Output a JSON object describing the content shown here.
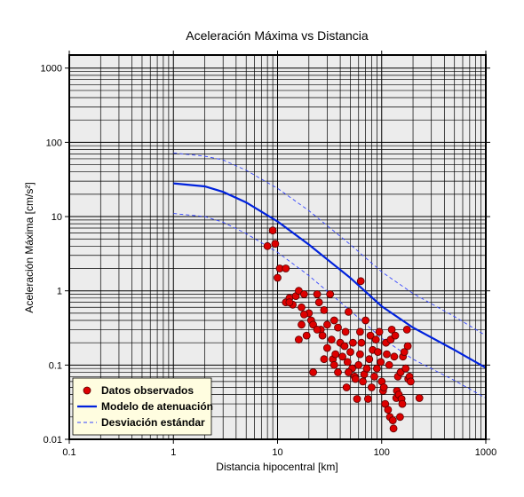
{
  "chart_data": {
    "type": "scatter",
    "title": "Aceleración Máxima vs Distancia",
    "xlabel": "Distancia hipocentral [km]",
    "ylabel": "Aceleración Máxima [cm/s²]",
    "xscale": "log",
    "yscale": "log",
    "xlim": [
      0.1,
      1000
    ],
    "ylim": [
      0.01,
      1500
    ],
    "grid": true,
    "legend_position": "bottom-left",
    "x_tick_labels": [
      "0.1",
      "1",
      "10",
      "100",
      "1000"
    ],
    "y_tick_labels": [
      "0.01",
      "0.1",
      "1",
      "10",
      "100",
      "1000"
    ],
    "series": [
      {
        "name": "Datos observados",
        "kind": "scatter",
        "color": "#dd0000",
        "points": [
          [
            8.0,
            4.0
          ],
          [
            9.0,
            6.5
          ],
          [
            9.5,
            4.3
          ],
          [
            10.0,
            1.5
          ],
          [
            10.5,
            2.0
          ],
          [
            12.0,
            2.0
          ],
          [
            12.0,
            0.7
          ],
          [
            13.0,
            0.8
          ],
          [
            14.0,
            0.65
          ],
          [
            15.0,
            0.85
          ],
          [
            16.0,
            1.0
          ],
          [
            17.0,
            0.6
          ],
          [
            18.0,
            0.9
          ],
          [
            16.0,
            0.22
          ],
          [
            17.0,
            0.35
          ],
          [
            19.0,
            0.25
          ],
          [
            20.0,
            0.5
          ],
          [
            21.0,
            0.4
          ],
          [
            22.0,
            0.35
          ],
          [
            24.0,
            0.9
          ],
          [
            25.0,
            0.7
          ],
          [
            26.0,
            0.3
          ],
          [
            27.0,
            0.25
          ],
          [
            28.0,
            0.55
          ],
          [
            30.0,
            0.35
          ],
          [
            32.0,
            0.9
          ],
          [
            33.0,
            0.22
          ],
          [
            34.0,
            0.12
          ],
          [
            35.0,
            0.1
          ],
          [
            36.0,
            0.14
          ],
          [
            38.0,
            0.08
          ],
          [
            40.0,
            0.2
          ],
          [
            42.0,
            0.13
          ],
          [
            44.0,
            0.18
          ],
          [
            46.0,
            0.05
          ],
          [
            47.0,
            0.11
          ],
          [
            48.0,
            0.52
          ],
          [
            50.0,
            0.15
          ],
          [
            52.0,
            0.09
          ],
          [
            53.0,
            0.2
          ],
          [
            55.0,
            0.07
          ],
          [
            56.0,
            0.065
          ],
          [
            58.0,
            0.035
          ],
          [
            60.0,
            0.1
          ],
          [
            62.0,
            0.14
          ],
          [
            63.0,
            1.35
          ],
          [
            64.0,
            0.2
          ],
          [
            66.0,
            0.06
          ],
          [
            68.0,
            0.075
          ],
          [
            70.0,
            0.4
          ],
          [
            72.0,
            0.09
          ],
          [
            74.0,
            0.035
          ],
          [
            76.0,
            0.12
          ],
          [
            78.0,
            0.25
          ],
          [
            80.0,
            0.05
          ],
          [
            82.0,
            0.16
          ],
          [
            85.0,
            0.07
          ],
          [
            88.0,
            0.22
          ],
          [
            90.0,
            0.09
          ],
          [
            92.0,
            0.15
          ],
          [
            95.0,
            0.28
          ],
          [
            98.0,
            0.11
          ],
          [
            100.0,
            0.06
          ],
          [
            103.0,
            0.045
          ],
          [
            105.0,
            0.05
          ],
          [
            108.0,
            0.03
          ],
          [
            110.0,
            0.2
          ],
          [
            112.0,
            0.14
          ],
          [
            115.0,
            0.025
          ],
          [
            118.0,
            0.1
          ],
          [
            120.0,
            0.02
          ],
          [
            122.0,
            0.22
          ],
          [
            125.0,
            0.3
          ],
          [
            128.0,
            0.018
          ],
          [
            130.0,
            0.014
          ],
          [
            132.0,
            0.13
          ],
          [
            135.0,
            0.25
          ],
          [
            138.0,
            0.036
          ],
          [
            140.0,
            0.045
          ],
          [
            143.0,
            0.07
          ],
          [
            146.0,
            0.04
          ],
          [
            150.0,
            0.02
          ],
          [
            152.0,
            0.08
          ],
          [
            155.0,
            0.035
          ],
          [
            158.0,
            0.03
          ],
          [
            160.0,
            0.13
          ],
          [
            165.0,
            0.15
          ],
          [
            170.0,
            0.09
          ],
          [
            175.0,
            0.3
          ],
          [
            178.0,
            0.18
          ],
          [
            180.0,
            0.065
          ],
          [
            185.0,
            0.07
          ],
          [
            190.0,
            0.06
          ],
          [
            230.0,
            0.036
          ],
          [
            48.0,
            0.08
          ],
          [
            38.0,
            0.32
          ],
          [
            30.0,
            0.17
          ],
          [
            28.0,
            0.12
          ],
          [
            62.0,
            0.28
          ],
          [
            22.0,
            0.08
          ],
          [
            13.0,
            0.7
          ],
          [
            18.0,
            0.48
          ],
          [
            24.0,
            0.3
          ],
          [
            35.0,
            0.4
          ],
          [
            45.0,
            0.28
          ]
        ]
      },
      {
        "name": "Modelo de atenuación",
        "kind": "line",
        "color": "#0022dd",
        "x": [
          1,
          2,
          3,
          5,
          10,
          20,
          50,
          100,
          200,
          500,
          1000
        ],
        "y": [
          28,
          25.5,
          21.5,
          15.5,
          8.6,
          4.2,
          1.49,
          0.62,
          0.32,
          0.16,
          0.092
        ]
      },
      {
        "name": "Desviación estándar",
        "kind": "line-dashed",
        "color": "#3344ff",
        "x": [
          1,
          2,
          3,
          5,
          10,
          20,
          50,
          100,
          200,
          500,
          1000
        ],
        "y": [
          72,
          65,
          58,
          42,
          24,
          12,
          4.2,
          1.8,
          0.92,
          0.45,
          0.25
        ]
      },
      {
        "name": "",
        "kind": "line-dashed",
        "color": "#3344ff",
        "legend": false,
        "x": [
          1,
          2,
          3,
          5,
          10,
          20,
          50,
          100,
          200,
          500,
          1000
        ],
        "y": [
          11,
          10,
          8.4,
          5.9,
          3.3,
          1.6,
          0.54,
          0.23,
          0.12,
          0.062,
          0.036
        ]
      }
    ],
    "legend": [
      {
        "label": "Datos observados",
        "symbol": "dot",
        "color": "#dd0000"
      },
      {
        "label": "Modelo de atenuación",
        "symbol": "solid-line",
        "color": "#0022dd"
      },
      {
        "label": "Desviación estándar",
        "symbol": "dashed-line",
        "color": "#3344ff"
      }
    ]
  }
}
